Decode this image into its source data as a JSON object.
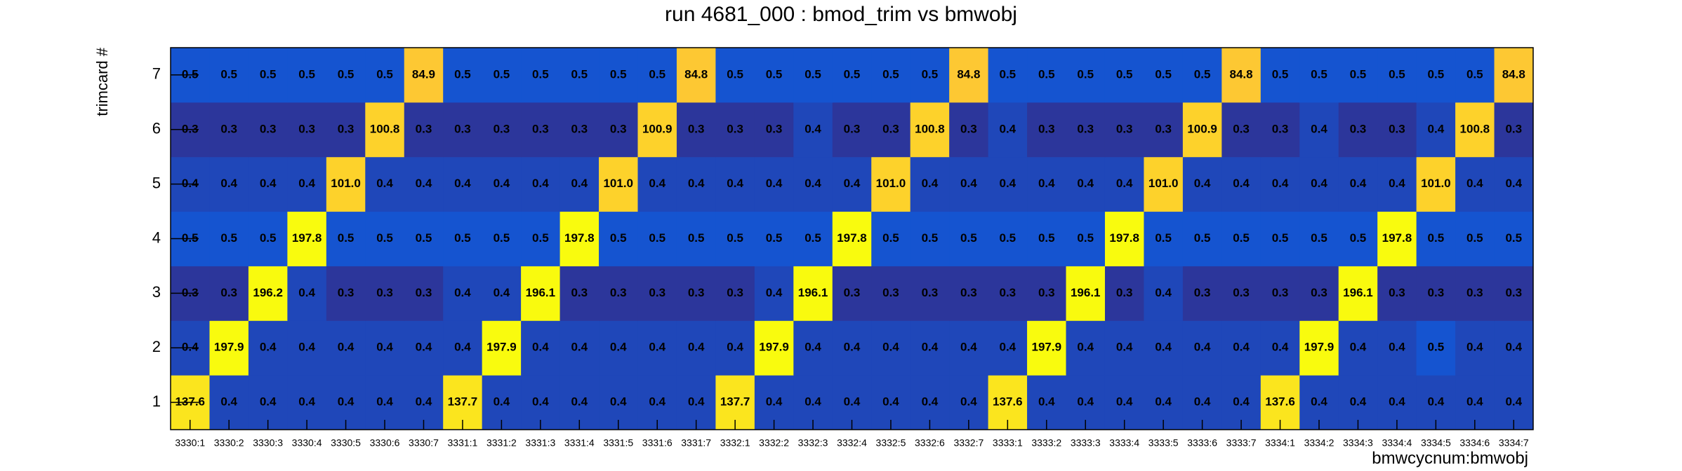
{
  "chart_data": {
    "type": "heatmap",
    "title": "run 4681_000 : bmod_trim vs bmwobj",
    "x_label": "bmwcycnum:bmwobj",
    "y_label": "trimcard #",
    "colormap": "bird",
    "log_color": true,
    "x_categories": [
      "3330:1",
      "3330:2",
      "3330:3",
      "3330:4",
      "3330:5",
      "3330:6",
      "3330:7",
      "3331:1",
      "3331:2",
      "3331:3",
      "3331:4",
      "3331:5",
      "3331:6",
      "3331:7",
      "3332:1",
      "3332:2",
      "3332:3",
      "3332:4",
      "3332:5",
      "3332:6",
      "3332:7",
      "3333:1",
      "3333:2",
      "3333:3",
      "3333:4",
      "3333:5",
      "3333:6",
      "3333:7",
      "3334:1",
      "3334:2",
      "3334:3",
      "3334:4",
      "3334:5",
      "3334:6",
      "3334:7"
    ],
    "y_categories": [
      1,
      2,
      3,
      4,
      5,
      6,
      7
    ],
    "values": [
      [
        137.6,
        0.4,
        0.4,
        0.4,
        0.4,
        0.4,
        0.4,
        137.7,
        0.4,
        0.4,
        0.4,
        0.4,
        0.4,
        0.4,
        137.7,
        0.4,
        0.4,
        0.4,
        0.4,
        0.4,
        0.4,
        137.6,
        0.4,
        0.4,
        0.4,
        0.4,
        0.4,
        0.4,
        137.6,
        0.4,
        0.4,
        0.4,
        0.4,
        0.4,
        0.4
      ],
      [
        0.4,
        197.9,
        0.4,
        0.4,
        0.4,
        0.4,
        0.4,
        0.4,
        197.9,
        0.4,
        0.4,
        0.4,
        0.4,
        0.4,
        0.4,
        197.9,
        0.4,
        0.4,
        0.4,
        0.4,
        0.4,
        0.4,
        197.9,
        0.4,
        0.4,
        0.4,
        0.4,
        0.4,
        0.4,
        197.9,
        0.4,
        0.4,
        0.5,
        0.4,
        0.4
      ],
      [
        0.3,
        0.3,
        196.2,
        0.4,
        0.3,
        0.3,
        0.3,
        0.4,
        0.4,
        196.1,
        0.3,
        0.3,
        0.3,
        0.3,
        0.3,
        0.4,
        196.1,
        0.3,
        0.3,
        0.3,
        0.3,
        0.3,
        0.3,
        196.1,
        0.3,
        0.4,
        0.3,
        0.3,
        0.3,
        0.3,
        196.1,
        0.3,
        0.3,
        0.3,
        0.3
      ],
      [
        0.5,
        0.5,
        0.5,
        197.8,
        0.5,
        0.5,
        0.5,
        0.5,
        0.5,
        0.5,
        197.8,
        0.5,
        0.5,
        0.5,
        0.5,
        0.5,
        0.5,
        197.8,
        0.5,
        0.5,
        0.5,
        0.5,
        0.5,
        0.5,
        197.8,
        0.5,
        0.5,
        0.5,
        0.5,
        0.5,
        0.5,
        197.8,
        0.5,
        0.5,
        0.5
      ],
      [
        0.4,
        0.4,
        0.4,
        0.4,
        101,
        0.4,
        0.4,
        0.4,
        0.4,
        0.4,
        0.4,
        101,
        0.4,
        0.4,
        0.4,
        0.4,
        0.4,
        0.4,
        101,
        0.4,
        0.4,
        0.4,
        0.4,
        0.4,
        0.4,
        101,
        0.4,
        0.4,
        0.4,
        0.4,
        0.4,
        0.4,
        101,
        0.4,
        0.4
      ],
      [
        0.3,
        0.3,
        0.3,
        0.3,
        0.3,
        100.8,
        0.3,
        0.3,
        0.3,
        0.3,
        0.3,
        0.3,
        100.9,
        0.3,
        0.3,
        0.3,
        0.4,
        0.3,
        0.3,
        100.8,
        0.3,
        0.4,
        0.3,
        0.3,
        0.3,
        0.3,
        100.9,
        0.3,
        0.3,
        0.4,
        0.3,
        0.3,
        0.4,
        100.8,
        0.3
      ],
      [
        0.5,
        0.5,
        0.5,
        0.5,
        0.5,
        0.5,
        84.9,
        0.5,
        0.5,
        0.5,
        0.5,
        0.5,
        0.5,
        84.8,
        0.5,
        0.5,
        0.5,
        0.5,
        0.5,
        0.5,
        84.8,
        0.5,
        0.5,
        0.5,
        0.5,
        0.5,
        0.5,
        84.8,
        0.5,
        0.5,
        0.5,
        0.5,
        0.5,
        0.5,
        84.8
      ]
    ],
    "value_labels": [
      [
        "137.6",
        "0.4",
        "0.4",
        "0.4",
        "0.4",
        "0.4",
        "0.4",
        "137.7",
        "0.4",
        "0.4",
        "0.4",
        "0.4",
        "0.4",
        "0.4",
        "137.7",
        "0.4",
        "0.4",
        "0.4",
        "0.4",
        "0.4",
        "0.4",
        "137.6",
        "0.4",
        "0.4",
        "0.4",
        "0.4",
        "0.4",
        "0.4",
        "137.6",
        "0.4",
        "0.4",
        "0.4",
        "0.4",
        "0.4",
        "0.4"
      ],
      [
        "0.4",
        "197.9",
        "0.4",
        "0.4",
        "0.4",
        "0.4",
        "0.4",
        "0.4",
        "197.9",
        "0.4",
        "0.4",
        "0.4",
        "0.4",
        "0.4",
        "0.4",
        "197.9",
        "0.4",
        "0.4",
        "0.4",
        "0.4",
        "0.4",
        "0.4",
        "197.9",
        "0.4",
        "0.4",
        "0.4",
        "0.4",
        "0.4",
        "0.4",
        "197.9",
        "0.4",
        "0.4",
        "0.5",
        "0.4",
        "0.4"
      ],
      [
        "0.3",
        "0.3",
        "196.2",
        "0.4",
        "0.3",
        "0.3",
        "0.3",
        "0.4",
        "0.4",
        "196.1",
        "0.3",
        "0.3",
        "0.3",
        "0.3",
        "0.3",
        "0.4",
        "196.1",
        "0.3",
        "0.3",
        "0.3",
        "0.3",
        "0.3",
        "0.3",
        "196.1",
        "0.3",
        "0.4",
        "0.3",
        "0.3",
        "0.3",
        "0.3",
        "196.1",
        "0.3",
        "0.3",
        "0.3",
        "0.3"
      ],
      [
        "0.5",
        "0.5",
        "0.5",
        "197.8",
        "0.5",
        "0.5",
        "0.5",
        "0.5",
        "0.5",
        "0.5",
        "197.8",
        "0.5",
        "0.5",
        "0.5",
        "0.5",
        "0.5",
        "0.5",
        "197.8",
        "0.5",
        "0.5",
        "0.5",
        "0.5",
        "0.5",
        "0.5",
        "197.8",
        "0.5",
        "0.5",
        "0.5",
        "0.5",
        "0.5",
        "0.5",
        "197.8",
        "0.5",
        "0.5",
        "0.5"
      ],
      [
        "0.4",
        "0.4",
        "0.4",
        "0.4",
        "101.0",
        "0.4",
        "0.4",
        "0.4",
        "0.4",
        "0.4",
        "0.4",
        "101.0",
        "0.4",
        "0.4",
        "0.4",
        "0.4",
        "0.4",
        "0.4",
        "101.0",
        "0.4",
        "0.4",
        "0.4",
        "0.4",
        "0.4",
        "0.4",
        "101.0",
        "0.4",
        "0.4",
        "0.4",
        "0.4",
        "0.4",
        "0.4",
        "101.0",
        "0.4",
        "0.4"
      ],
      [
        "0.3",
        "0.3",
        "0.3",
        "0.3",
        "0.3",
        "100.8",
        "0.3",
        "0.3",
        "0.3",
        "0.3",
        "0.3",
        "0.3",
        "100.9",
        "0.3",
        "0.3",
        "0.3",
        "0.4",
        "0.3",
        "0.3",
        "100.8",
        "0.3",
        "0.4",
        "0.3",
        "0.3",
        "0.3",
        "0.3",
        "100.9",
        "0.3",
        "0.3",
        "0.4",
        "0.3",
        "0.3",
        "0.4",
        "100.8",
        "0.3"
      ],
      [
        "0.5",
        "0.5",
        "0.5",
        "0.5",
        "0.5",
        "0.5",
        "84.9",
        "0.5",
        "0.5",
        "0.5",
        "0.5",
        "0.5",
        "0.5",
        "84.8",
        "0.5",
        "0.5",
        "0.5",
        "0.5",
        "0.5",
        "0.5",
        "84.8",
        "0.5",
        "0.5",
        "0.5",
        "0.5",
        "0.5",
        "0.5",
        "84.8",
        "0.5",
        "0.5",
        "0.5",
        "0.5",
        "0.5",
        "0.5",
        "84.8"
      ]
    ]
  }
}
